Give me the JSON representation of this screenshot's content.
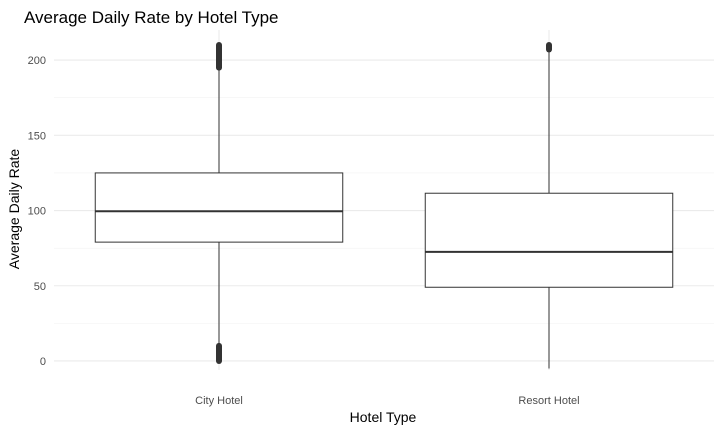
{
  "chart_data": {
    "type": "box",
    "title": "Average Daily Rate by Hotel Type",
    "xlabel": "Hotel Type",
    "ylabel": "Average Daily Rate",
    "ylim": [
      -6,
      220
    ],
    "y_ticks": [
      0,
      50,
      100,
      150,
      200
    ],
    "grid": true,
    "legend": "none",
    "categories": [
      "City Hotel",
      "Resort Hotel"
    ],
    "boxes": [
      {
        "category": "City Hotel",
        "whisker_low": 0,
        "q1": 79,
        "median": 99.5,
        "q3": 125,
        "whisker_high": 195,
        "outlier_ranges": [
          [
            195,
            210
          ],
          [
            0,
            10
          ]
        ]
      },
      {
        "category": "Resort Hotel",
        "whisker_low": -5,
        "q1": 49,
        "median": 72.5,
        "q3": 111.5,
        "whisker_high": 207,
        "outlier_ranges": [
          [
            207,
            210
          ]
        ]
      }
    ]
  }
}
